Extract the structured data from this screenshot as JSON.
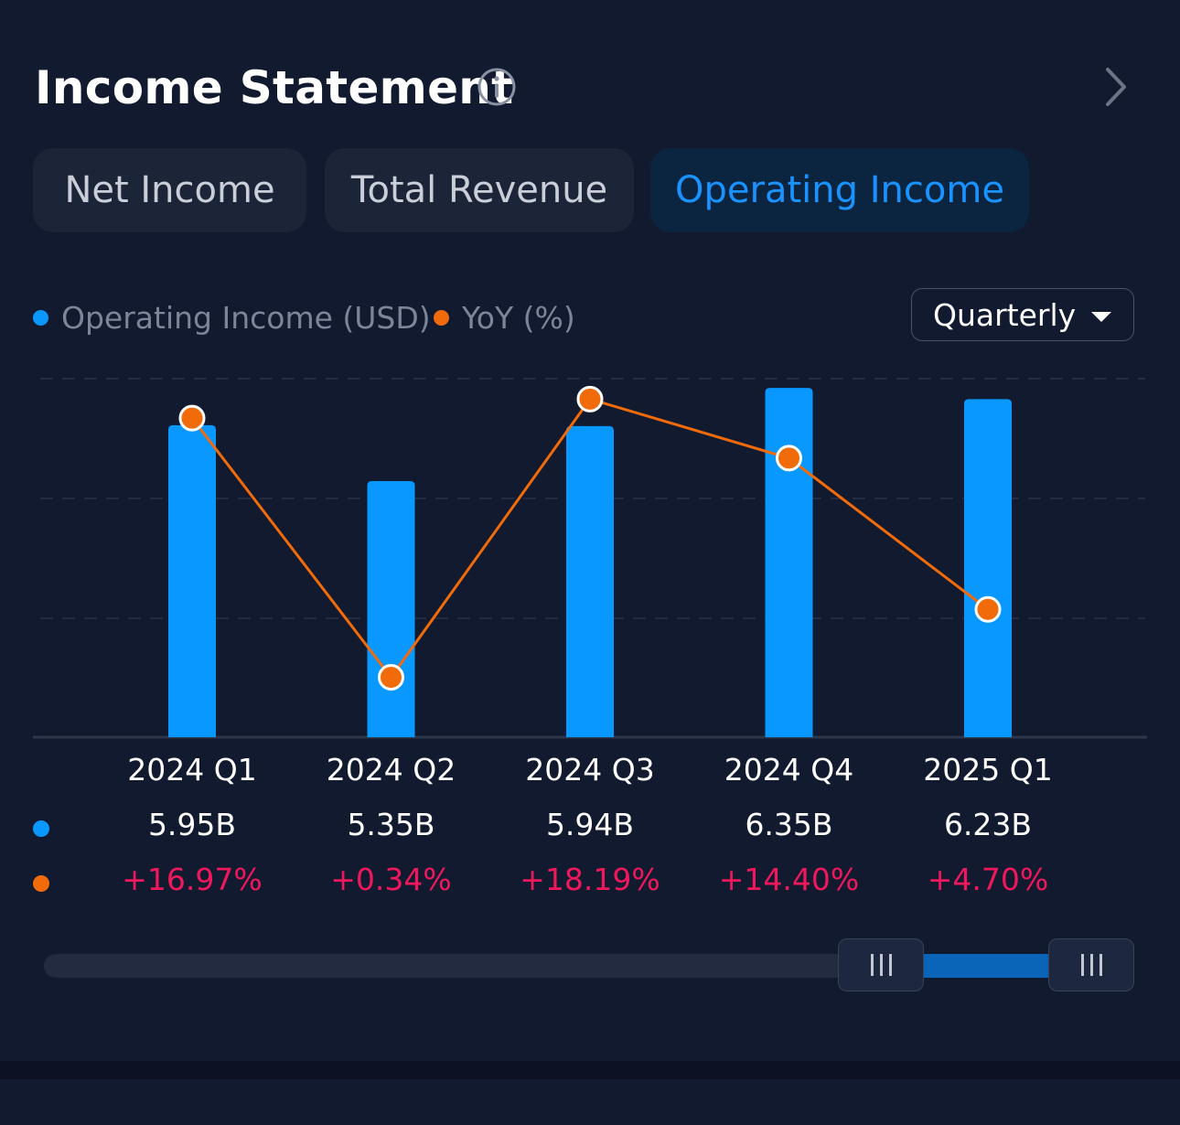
{
  "header": {
    "title": "Income Statement"
  },
  "tabs": [
    {
      "label": "Net Income",
      "active": false
    },
    {
      "label": "Total Revenue",
      "active": false
    },
    {
      "label": "Operating Income",
      "active": true
    }
  ],
  "legend": {
    "operating_income": "Operating Income (USD)",
    "yoy": "YoY (%)"
  },
  "period_select": {
    "value": "Quarterly"
  },
  "colors": {
    "bar": "#0898ff",
    "line": "#f26b0a",
    "negative_positive_text": "#f0185c",
    "active_tab_text": "#1993ff"
  },
  "chart_data": {
    "type": "bar",
    "categories": [
      "2024 Q1",
      "2024 Q2",
      "2024 Q3",
      "2024 Q4",
      "2025 Q1"
    ],
    "series": [
      {
        "name": "Operating Income (USD)",
        "type": "bar",
        "values": [
          5.95,
          5.35,
          5.94,
          6.35,
          6.23
        ],
        "value_labels": [
          "5.95B",
          "5.35B",
          "5.94B",
          "6.35B",
          "6.23B"
        ]
      },
      {
        "name": "YoY (%)",
        "type": "line",
        "values": [
          16.97,
          0.34,
          18.19,
          14.4,
          4.7
        ],
        "value_labels": [
          "+16.97%",
          "+0.34%",
          "+18.19%",
          "+14.40%",
          "+4.70%"
        ]
      }
    ],
    "grid": true,
    "legend_position": "top-left"
  }
}
